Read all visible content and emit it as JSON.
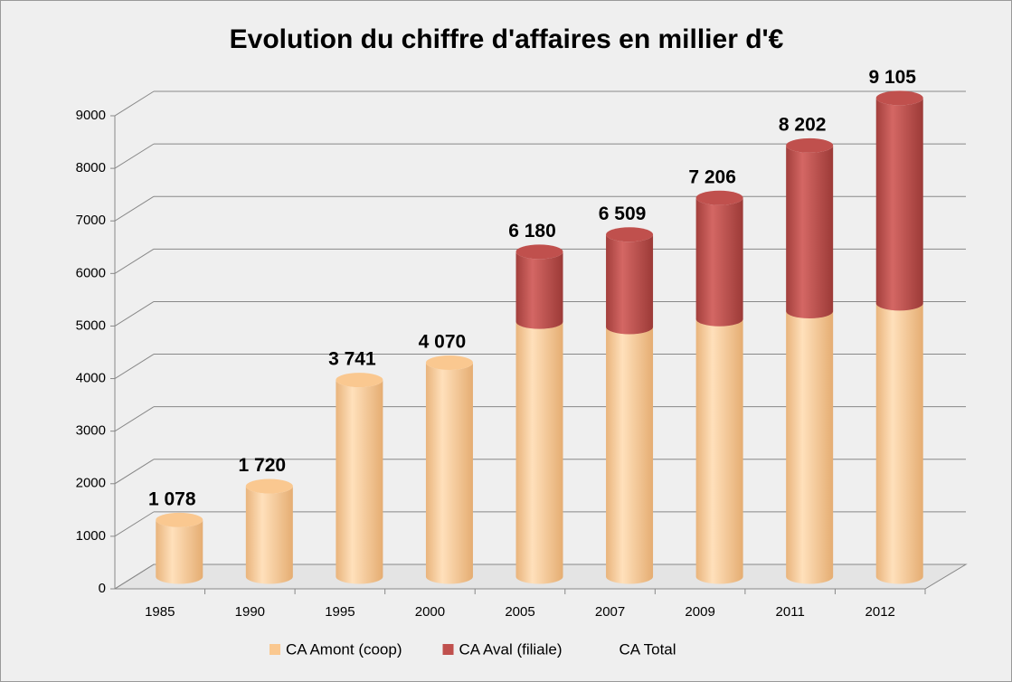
{
  "chart_data": {
    "type": "bar3d_stacked",
    "title": "Evolution du chiffre d'affaires en millier d'€",
    "categories": [
      "1985",
      "1990",
      "1995",
      "2000",
      "2005",
      "2007",
      "2009",
      "2011",
      "2012"
    ],
    "series": [
      {
        "name": "CA Amont (coop)",
        "color": "#fac890",
        "values": [
          1078,
          1720,
          3741,
          4070,
          4850,
          4750,
          4900,
          5050,
          5200
        ]
      },
      {
        "name": "CA Aval (filiale)",
        "color": "#c0504d",
        "values": [
          0,
          0,
          0,
          0,
          1330,
          1759,
          2306,
          3152,
          3905
        ]
      },
      {
        "name": "CA Total",
        "color": null,
        "values": [
          1078,
          1720,
          3741,
          4070,
          6180,
          6509,
          7206,
          8202,
          9105
        ],
        "value_labels": [
          "1 078",
          "1 720",
          "3 741",
          "4 070",
          "6 180",
          "6 509",
          "7 206",
          "8 202",
          "9 105"
        ]
      }
    ],
    "ylim": [
      0,
      9000
    ],
    "yticks": [
      0,
      1000,
      2000,
      3000,
      4000,
      5000,
      6000,
      7000,
      8000,
      9000
    ],
    "grid": true,
    "legend": "bottom"
  }
}
